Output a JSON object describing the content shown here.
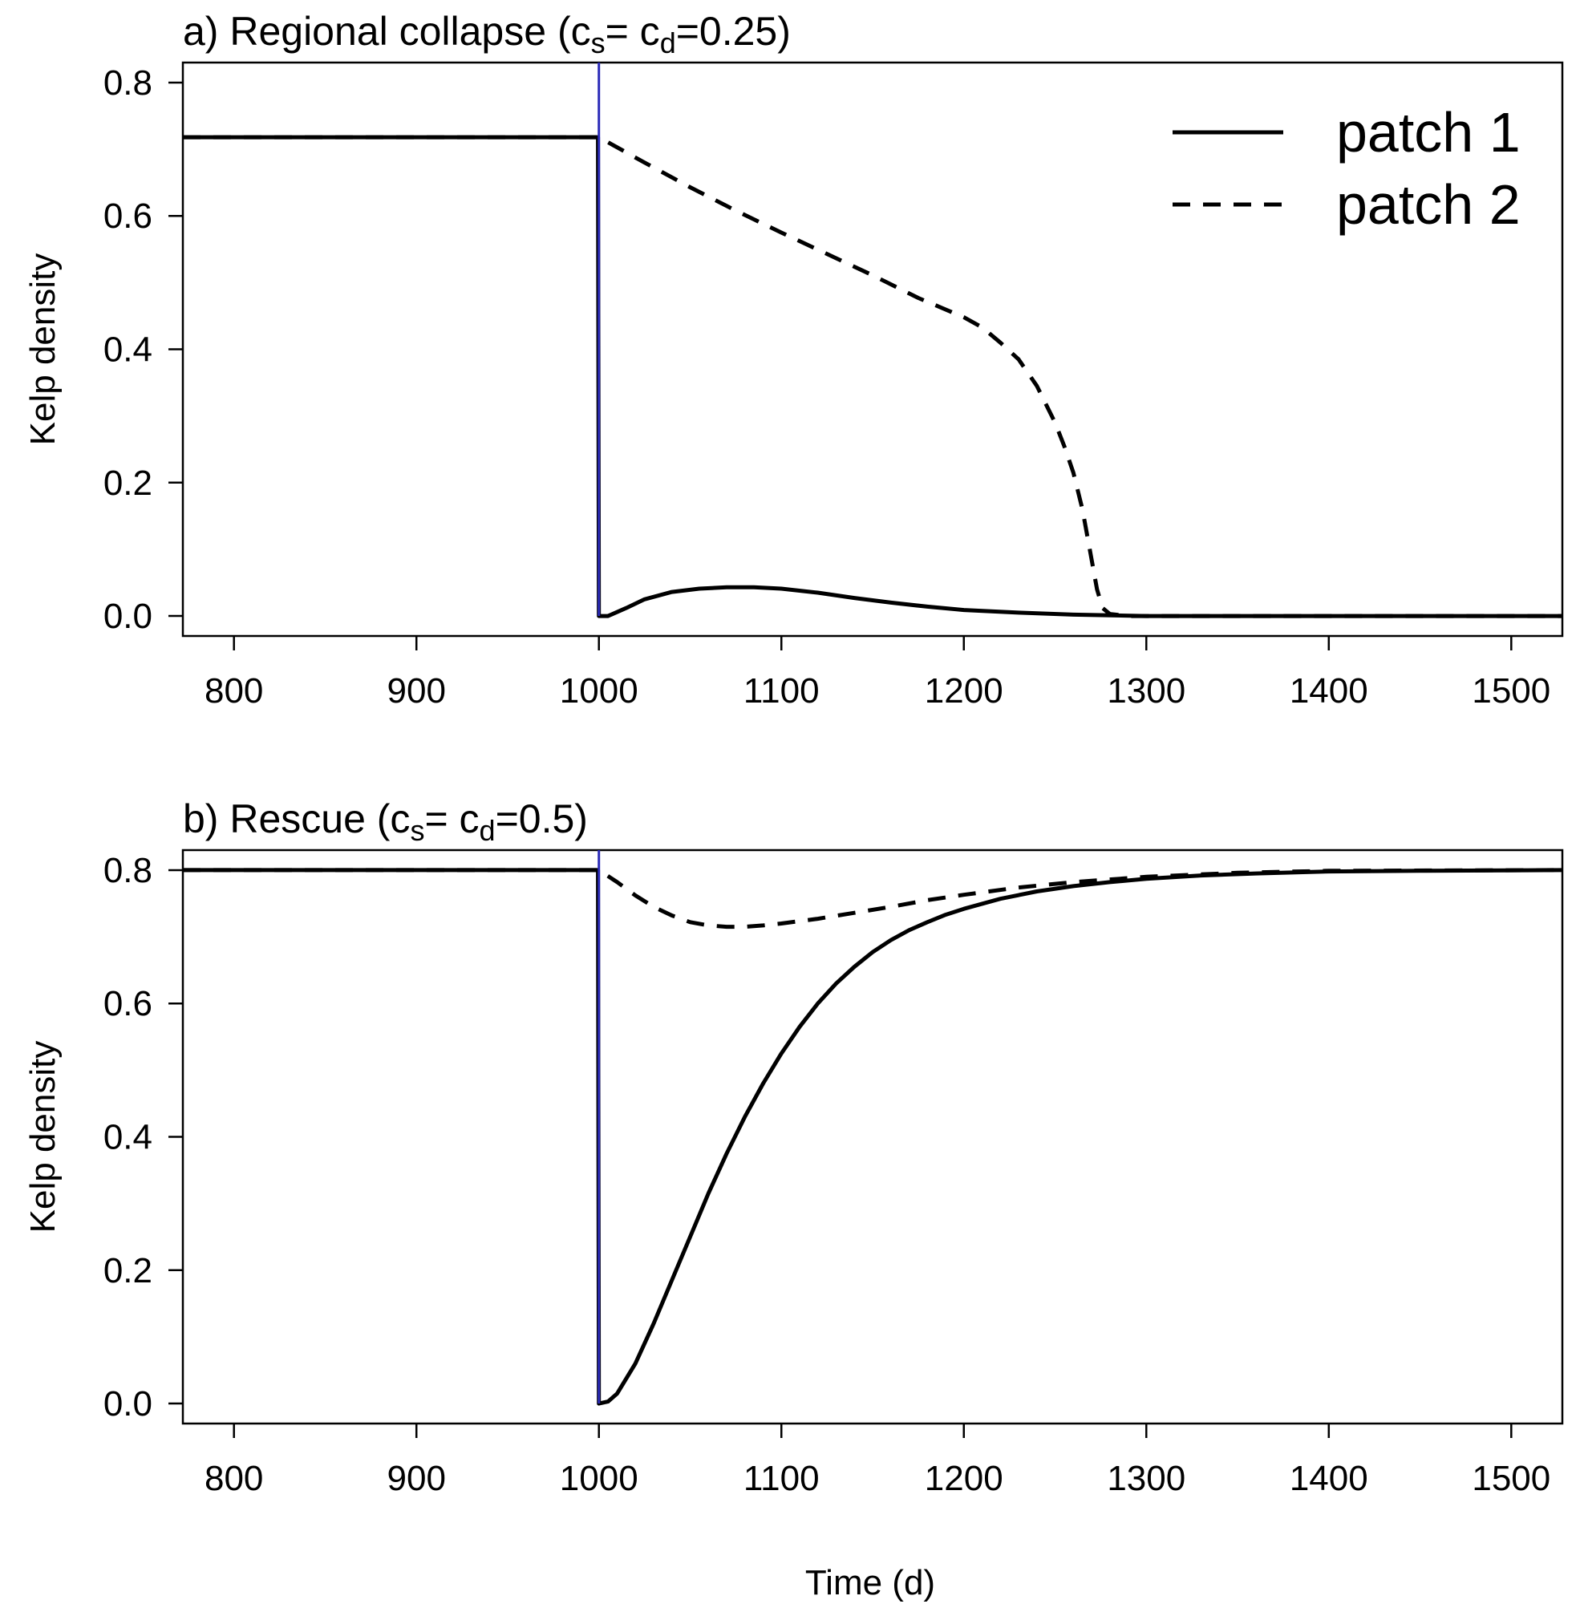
{
  "chart_data": [
    {
      "type": "line",
      "title": "a) Regional collapse (c",
      "title_parts": {
        "prefix": "a) Regional collapse (c",
        "sub1": "s",
        "mid": "= c",
        "sub2": "d",
        "suffix": "=0.25)"
      },
      "xlabel": "",
      "ylabel": "Kelp density",
      "xlim": [
        772,
        1528
      ],
      "ylim": [
        -0.03,
        0.83
      ],
      "x_ticks": [
        "800",
        "900",
        "1000",
        "1100",
        "1200",
        "1300",
        "1400",
        "1500"
      ],
      "y_ticks": [
        "0.0",
        "0.2",
        "0.4",
        "0.6",
        "0.8"
      ],
      "vline": {
        "x": 1000,
        "color": "#2a2ab8"
      },
      "legend": {
        "position": "top-right",
        "entries": [
          "patch 1",
          "patch 2"
        ]
      },
      "series": [
        {
          "name": "patch 1",
          "style": "solid",
          "color": "#000000",
          "x": [
            772,
            999.5,
            1000,
            1005,
            1015,
            1025,
            1040,
            1055,
            1070,
            1085,
            1100,
            1120,
            1140,
            1160,
            1180,
            1200,
            1230,
            1260,
            1300,
            1400,
            1528
          ],
          "y": [
            0.718,
            0.718,
            0.0,
            0.0,
            0.012,
            0.025,
            0.036,
            0.041,
            0.043,
            0.043,
            0.041,
            0.035,
            0.027,
            0.02,
            0.014,
            0.009,
            0.005,
            0.002,
            0.0,
            0.0,
            0.0
          ]
        },
        {
          "name": "patch 2",
          "style": "dashed",
          "color": "#000000",
          "x": [
            772,
            1000,
            1025,
            1050,
            1075,
            1100,
            1125,
            1150,
            1175,
            1200,
            1210,
            1220,
            1230,
            1240,
            1250,
            1255,
            1260,
            1265,
            1270,
            1273,
            1276,
            1280,
            1290,
            1400,
            1528
          ],
          "y": [
            0.718,
            0.718,
            0.68,
            0.643,
            0.608,
            0.575,
            0.543,
            0.511,
            0.477,
            0.448,
            0.433,
            0.41,
            0.385,
            0.345,
            0.29,
            0.255,
            0.215,
            0.16,
            0.085,
            0.04,
            0.012,
            0.003,
            0.0,
            0.0,
            0.0
          ]
        }
      ]
    },
    {
      "type": "line",
      "title": "b) Rescue (c",
      "title_parts": {
        "prefix": "b) Rescue (c",
        "sub1": "s",
        "mid": "= c",
        "sub2": "d",
        "suffix": "=0.5)"
      },
      "xlabel": "Time (d)",
      "ylabel": "Kelp density",
      "xlim": [
        772,
        1528
      ],
      "ylim": [
        -0.03,
        0.83
      ],
      "x_ticks": [
        "800",
        "900",
        "1000",
        "1100",
        "1200",
        "1300",
        "1400",
        "1500"
      ],
      "y_ticks": [
        "0.0",
        "0.2",
        "0.4",
        "0.6",
        "0.8"
      ],
      "vline": {
        "x": 1000,
        "color": "#2a2ab8"
      },
      "series": [
        {
          "name": "patch 1",
          "style": "solid",
          "color": "#000000",
          "x": [
            772,
            999.5,
            1000,
            1005,
            1010,
            1020,
            1030,
            1040,
            1050,
            1060,
            1070,
            1080,
            1090,
            1100,
            1110,
            1120,
            1130,
            1140,
            1150,
            1160,
            1170,
            1180,
            1190,
            1200,
            1220,
            1240,
            1260,
            1280,
            1300,
            1330,
            1360,
            1400,
            1450,
            1528
          ],
          "y": [
            0.8,
            0.8,
            0.0,
            0.003,
            0.015,
            0.06,
            0.12,
            0.185,
            0.25,
            0.315,
            0.375,
            0.43,
            0.48,
            0.525,
            0.565,
            0.6,
            0.63,
            0.655,
            0.677,
            0.695,
            0.71,
            0.722,
            0.733,
            0.742,
            0.757,
            0.768,
            0.776,
            0.782,
            0.787,
            0.792,
            0.795,
            0.798,
            0.799,
            0.8
          ]
        },
        {
          "name": "patch 2",
          "style": "dashed",
          "color": "#000000",
          "x": [
            772,
            1000,
            1010,
            1020,
            1030,
            1040,
            1050,
            1060,
            1070,
            1080,
            1090,
            1100,
            1120,
            1140,
            1160,
            1180,
            1200,
            1230,
            1260,
            1300,
            1350,
            1400,
            1528
          ],
          "y": [
            0.8,
            0.8,
            0.782,
            0.762,
            0.745,
            0.732,
            0.722,
            0.717,
            0.715,
            0.715,
            0.717,
            0.72,
            0.727,
            0.736,
            0.745,
            0.755,
            0.763,
            0.774,
            0.782,
            0.79,
            0.796,
            0.799,
            0.8
          ]
        }
      ]
    }
  ]
}
